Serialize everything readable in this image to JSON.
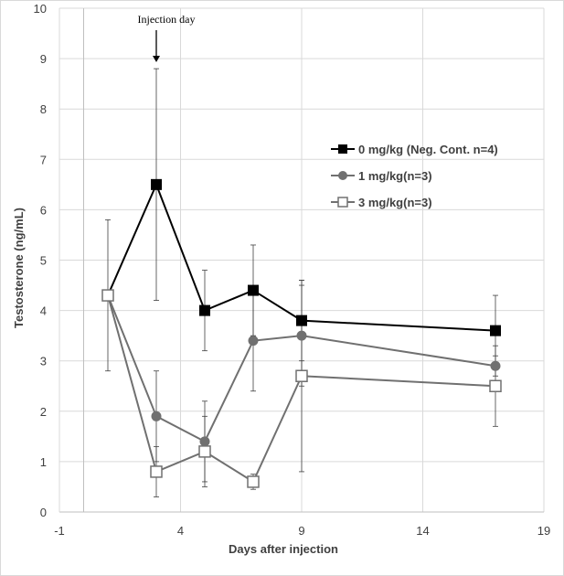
{
  "chart_data": {
    "type": "scatter",
    "title": "",
    "xlabel": "Days after injection",
    "ylabel": "Testosterone (ng/mL)",
    "xlim": [
      -1,
      19
    ],
    "ylim": [
      0,
      10
    ],
    "xticks": [
      -1,
      4,
      9,
      14,
      19
    ],
    "yticks": [
      0,
      1,
      2,
      3,
      4,
      5,
      6,
      7,
      8,
      9,
      10
    ],
    "grid": "vertical and horizontal",
    "legend_position": "right",
    "annotation": {
      "text": "Injection day",
      "x": 3,
      "y": 8.85
    },
    "series": [
      {
        "name": "0 mg/kg (Neg. Cont. n=4)",
        "marker": "filled-square",
        "color": "#000000",
        "x": [
          1,
          3,
          5,
          7,
          9,
          17
        ],
        "y": [
          4.3,
          6.5,
          4.0,
          4.4,
          3.8,
          3.6
        ],
        "err_low": [
          2.8,
          4.2,
          3.2,
          3.5,
          3.0,
          2.9
        ],
        "err_high": [
          5.8,
          8.8,
          4.8,
          5.3,
          4.6,
          4.3
        ]
      },
      {
        "name": "1 mg/kg(n=3)",
        "marker": "filled-circle",
        "color": "#707070",
        "x": [
          1,
          3,
          5,
          7,
          9,
          17
        ],
        "y": [
          4.3,
          1.9,
          1.4,
          3.4,
          3.5,
          2.9
        ],
        "err_low": [
          4.3,
          1.0,
          0.6,
          2.4,
          2.5,
          2.7
        ],
        "err_high": [
          4.3,
          2.8,
          2.2,
          4.4,
          4.5,
          3.1
        ]
      },
      {
        "name": "3 mg/kg(n=3)",
        "marker": "open-square",
        "color": "#707070",
        "x": [
          1,
          3,
          5,
          7,
          9,
          17
        ],
        "y": [
          4.3,
          0.8,
          1.2,
          0.6,
          2.7,
          2.5
        ],
        "err_low": [
          4.3,
          0.3,
          0.5,
          0.45,
          0.8,
          1.7
        ],
        "err_high": [
          4.3,
          1.3,
          1.9,
          0.75,
          4.6,
          3.3
        ]
      }
    ]
  }
}
